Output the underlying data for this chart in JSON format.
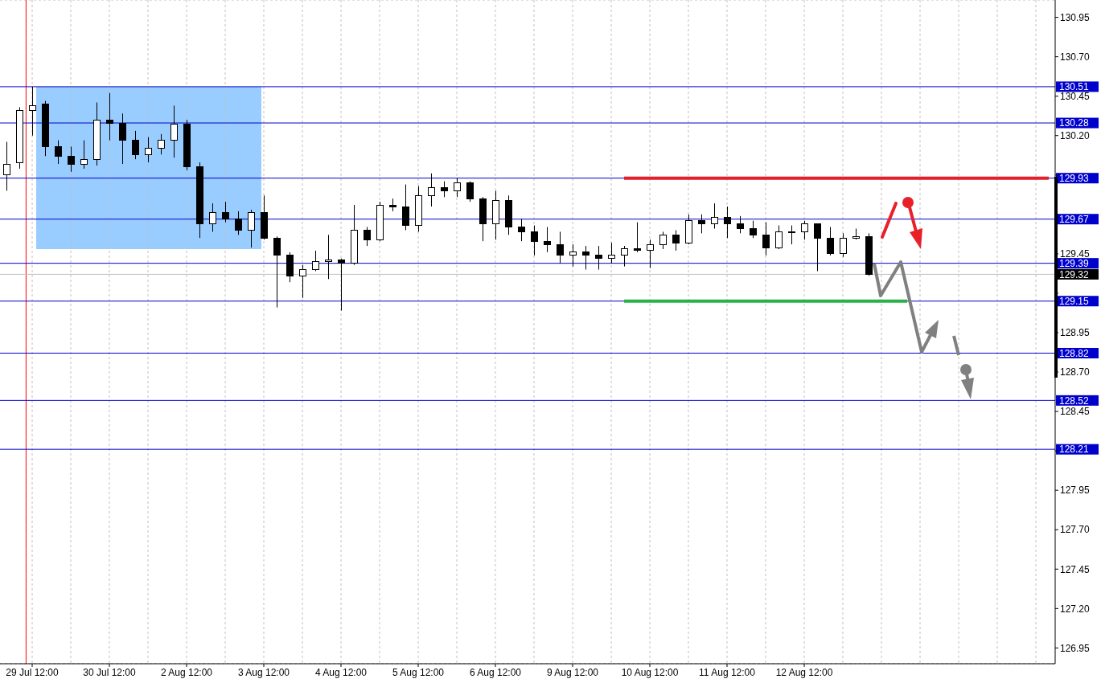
{
  "chart_data": {
    "type": "candlestick",
    "categories": [
      null,
      null,
      "29 Jul 12:00",
      null,
      null,
      null,
      null,
      null,
      "30 Jul 12:00",
      null,
      null,
      null,
      null,
      null,
      "2 Aug 12:00",
      null,
      null,
      null,
      null,
      null,
      "3 Aug 12:00",
      null,
      null,
      null,
      null,
      null,
      "4 Aug 12:00",
      null,
      null,
      null,
      null,
      null,
      "5 Aug 12:00",
      null,
      null,
      null,
      null,
      null,
      "6 Aug 12:00",
      null,
      null,
      null,
      null,
      null,
      "9 Aug 12:00",
      null,
      null,
      null,
      null,
      null,
      "10 Aug 12:00",
      null,
      null,
      null,
      null,
      null,
      "11 Aug 12:00",
      null,
      null,
      null,
      null,
      null,
      "12 Aug 12:00",
      null,
      null,
      null,
      null,
      null,
      null,
      null,
      null,
      null,
      null,
      null,
      null,
      null,
      null,
      null,
      null,
      null,
      null,
      null
    ],
    "ohlc": [
      [
        129.95,
        130.16,
        129.85,
        130.02
      ],
      [
        130.03,
        130.38,
        129.99,
        130.36
      ],
      [
        130.36,
        130.51,
        130.2,
        130.39
      ],
      [
        130.4,
        130.42,
        130.07,
        130.13
      ],
      [
        130.13,
        130.17,
        130.02,
        130.07
      ],
      [
        130.07,
        130.13,
        129.97,
        130.02
      ],
      [
        130.02,
        130.17,
        129.99,
        130.05
      ],
      [
        130.05,
        130.41,
        130.01,
        130.3
      ],
      [
        130.3,
        130.47,
        130.17,
        130.28
      ],
      [
        130.28,
        130.34,
        130.02,
        130.17
      ],
      [
        130.17,
        130.23,
        130.05,
        130.08
      ],
      [
        130.08,
        130.19,
        130.03,
        130.12
      ],
      [
        130.12,
        130.21,
        130.08,
        130.17
      ],
      [
        130.17,
        130.39,
        130.06,
        130.27
      ],
      [
        130.27,
        130.3,
        129.98,
        130.0
      ],
      [
        130.0,
        130.03,
        129.55,
        129.64
      ],
      [
        129.64,
        129.77,
        129.59,
        129.71
      ],
      [
        129.71,
        129.78,
        129.65,
        129.67
      ],
      [
        129.67,
        129.72,
        129.57,
        129.6
      ],
      [
        129.6,
        129.73,
        129.49,
        129.71
      ],
      [
        129.71,
        129.82,
        129.54,
        129.55
      ],
      [
        129.55,
        129.56,
        129.11,
        129.44
      ],
      [
        129.44,
        129.46,
        129.27,
        129.31
      ],
      [
        129.31,
        129.38,
        129.17,
        129.35
      ],
      [
        129.35,
        129.47,
        129.34,
        129.4
      ],
      [
        129.4,
        129.57,
        129.29,
        129.41
      ],
      [
        129.41,
        129.42,
        129.09,
        129.39
      ],
      [
        129.39,
        129.76,
        129.38,
        129.6
      ],
      [
        129.6,
        129.62,
        129.5,
        129.54
      ],
      [
        129.54,
        129.78,
        129.53,
        129.76
      ],
      [
        129.76,
        129.8,
        129.72,
        129.75
      ],
      [
        129.75,
        129.89,
        129.6,
        129.63
      ],
      [
        129.63,
        129.88,
        129.59,
        129.82
      ],
      [
        129.82,
        129.96,
        129.75,
        129.87
      ],
      [
        129.87,
        129.91,
        129.81,
        129.85
      ],
      [
        129.85,
        129.93,
        129.81,
        129.9
      ],
      [
        129.9,
        129.91,
        129.78,
        129.8
      ],
      [
        129.8,
        129.81,
        129.53,
        129.64
      ],
      [
        129.64,
        129.85,
        129.54,
        129.79
      ],
      [
        129.79,
        129.82,
        129.57,
        129.62
      ],
      [
        129.62,
        129.67,
        129.53,
        129.59
      ],
      [
        129.59,
        129.63,
        129.44,
        129.53
      ],
      [
        129.53,
        129.62,
        129.46,
        129.51
      ],
      [
        129.51,
        129.59,
        129.39,
        129.44
      ],
      [
        129.44,
        129.51,
        129.37,
        129.46
      ],
      [
        129.46,
        129.5,
        129.35,
        129.44
      ],
      [
        129.44,
        129.5,
        129.35,
        129.42
      ],
      [
        129.42,
        129.52,
        129.39,
        129.44
      ],
      [
        129.44,
        129.5,
        129.37,
        129.48
      ],
      [
        129.48,
        129.65,
        129.46,
        129.47
      ],
      [
        129.47,
        129.54,
        129.36,
        129.51
      ],
      [
        129.51,
        129.59,
        129.48,
        129.57
      ],
      [
        129.57,
        129.6,
        129.47,
        129.52
      ],
      [
        129.52,
        129.7,
        129.51,
        129.66
      ],
      [
        129.66,
        129.7,
        129.58,
        129.64
      ],
      [
        129.64,
        129.77,
        129.61,
        129.68
      ],
      [
        129.68,
        129.75,
        129.55,
        129.64
      ],
      [
        129.64,
        129.69,
        129.58,
        129.61
      ],
      [
        129.61,
        129.66,
        129.55,
        129.57
      ],
      [
        129.57,
        129.65,
        129.44,
        129.49
      ],
      [
        129.49,
        129.63,
        129.48,
        129.59
      ],
      [
        129.59,
        129.63,
        129.51,
        129.59
      ],
      [
        129.59,
        129.66,
        129.54,
        129.64
      ],
      [
        129.64,
        129.64,
        129.34,
        129.55
      ],
      [
        129.55,
        129.62,
        129.44,
        129.45
      ],
      [
        129.45,
        129.58,
        129.43,
        129.55
      ],
      [
        129.55,
        129.61,
        129.54,
        129.56
      ],
      [
        129.56,
        129.58,
        129.31,
        129.32
      ],
      null,
      null,
      null,
      null,
      null,
      null,
      null,
      null,
      null,
      null,
      null,
      null,
      null,
      null
    ],
    "color": "#000000",
    "series": [
      {
        "type": "line",
        "color": "#e0202a",
        "values": [
          null,
          null,
          null,
          null,
          null,
          null,
          null,
          null,
          null,
          null,
          null,
          null,
          null,
          null,
          null,
          null,
          null,
          null,
          null,
          null,
          null,
          null,
          null,
          null,
          null,
          null,
          null,
          null,
          null,
          null,
          null,
          null,
          null,
          null,
          null,
          null,
          null,
          null,
          null,
          null,
          null,
          null,
          null,
          null,
          null,
          null,
          null,
          null,
          129.93,
          129.93,
          129.93,
          129.93,
          129.93,
          129.93,
          129.93,
          129.93,
          129.93,
          129.93,
          129.93,
          129.93,
          129.93,
          129.93,
          129.93,
          129.93,
          129.93,
          129.93,
          129.93,
          129.93,
          129.93,
          129.93,
          129.93,
          129.93,
          129.93,
          129.93,
          129.93,
          129.93,
          129.93,
          129.93,
          129.93,
          129.93,
          129.93,
          129.93
        ]
      },
      {
        "type": "line",
        "color": "#29b24a",
        "values": [
          null,
          null,
          null,
          null,
          null,
          null,
          null,
          null,
          null,
          null,
          null,
          null,
          null,
          null,
          null,
          null,
          null,
          null,
          null,
          null,
          null,
          null,
          null,
          null,
          null,
          null,
          null,
          null,
          null,
          null,
          null,
          null,
          null,
          null,
          null,
          null,
          null,
          null,
          null,
          null,
          null,
          null,
          null,
          null,
          null,
          null,
          null,
          null,
          129.15,
          129.15,
          129.15,
          129.15,
          129.15,
          129.15,
          129.15,
          129.15,
          129.15,
          129.15,
          129.15,
          129.15,
          129.15,
          129.15,
          129.15,
          129.15,
          129.15,
          129.15,
          129.15,
          129.15,
          129.15,
          129.15,
          129.15,
          null,
          null,
          null,
          null,
          null,
          null,
          null,
          null,
          null,
          null,
          null
        ]
      }
    ],
    "ylim": [
      126.85,
      131.06
    ],
    "yticks": [
      126.95,
      {
        "value": 127.2,
        "label": "127.20"
      },
      127.45,
      {
        "value": 127.7,
        "label": "127.70"
      },
      127.95,
      {
        "value": 128.2,
        "label": null
      },
      128.45,
      {
        "value": 128.7,
        "label": "128.70"
      },
      128.95,
      {
        "value": 129.2,
        "label": null
      },
      129.45,
      {
        "value": 129.7,
        "label": null
      },
      {
        "value": 129.95,
        "label": null
      },
      {
        "value": 130.2,
        "label": "130.20"
      },
      130.45,
      {
        "value": 130.7,
        "label": "130.70"
      },
      130.95
    ],
    "ref_lines": [
      {
        "axis": "x",
        "value": "29 Jul 12:00",
        "color": "#ff0000"
      },
      {
        "axis": "y",
        "value": 130.51,
        "label": "130.51",
        "color": "#0000cc"
      },
      {
        "axis": "y",
        "value": 130.28,
        "label": "130.28",
        "color": "#0000cc"
      },
      {
        "axis": "y",
        "value": 129.93,
        "label": "129.93",
        "color": "#0000cc"
      },
      {
        "axis": "y",
        "value": 129.67,
        "label": "129.67",
        "color": "#0000cc"
      },
      {
        "axis": "y",
        "value": 129.39,
        "label": "129.39",
        "color": "#0000cc"
      },
      {
        "axis": "y",
        "value": 129.32,
        "label": "129.32",
        "color": "#c0c0c0"
      },
      {
        "axis": "y",
        "value": 129.15,
        "label": "129.15",
        "color": "#0000cc"
      },
      {
        "axis": "y",
        "value": 128.82,
        "label": "128.82",
        "color": "#0000cc"
      },
      {
        "axis": "y",
        "value": 128.52,
        "label": "128.52",
        "color": "#0000cc"
      },
      {
        "axis": "y",
        "value": 128.21,
        "label": "128.21",
        "color": "#0000cc"
      }
    ],
    "grid": true
  }
}
